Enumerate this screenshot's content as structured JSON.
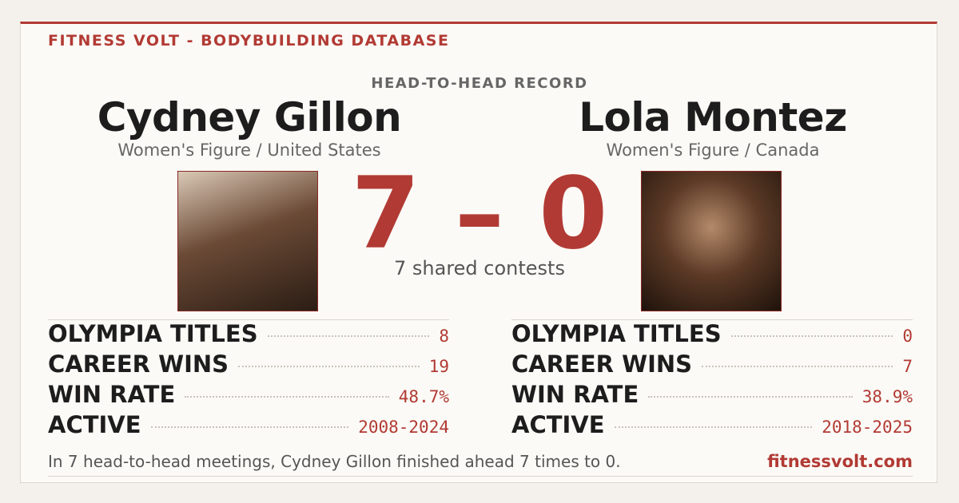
{
  "header": {
    "brand": "FITNESS VOLT - BODYBUILDING DATABASE",
    "section": "HEAD-TO-HEAD RECORD"
  },
  "athletes": [
    {
      "name": "Cydney Gillon",
      "division": "Women's Figure / United States",
      "stats": [
        {
          "label": "OLYMPIA TITLES",
          "value": 8
        },
        {
          "label": "CAREER WINS",
          "value": 19
        },
        {
          "label": "WIN RATE",
          "value": "48.7%"
        },
        {
          "label": "ACTIVE",
          "value": "2008-2024"
        }
      ]
    },
    {
      "name": "Lola Montez",
      "division": "Women's Figure / Canada",
      "stats": [
        {
          "label": "OLYMPIA TITLES",
          "value": 0
        },
        {
          "label": "CAREER WINS",
          "value": 7
        },
        {
          "label": "WIN RATE",
          "value": "38.9%"
        },
        {
          "label": "ACTIVE",
          "value": "2018-2025"
        }
      ]
    }
  ],
  "score": {
    "left": 7,
    "separator": "–",
    "right": 0,
    "caption": "7 shared contests"
  },
  "footer": {
    "summary": "In 7 head-to-head meetings, Cydney Gillon finished ahead 7 times to 0.",
    "site": "fitnessvolt.com"
  }
}
